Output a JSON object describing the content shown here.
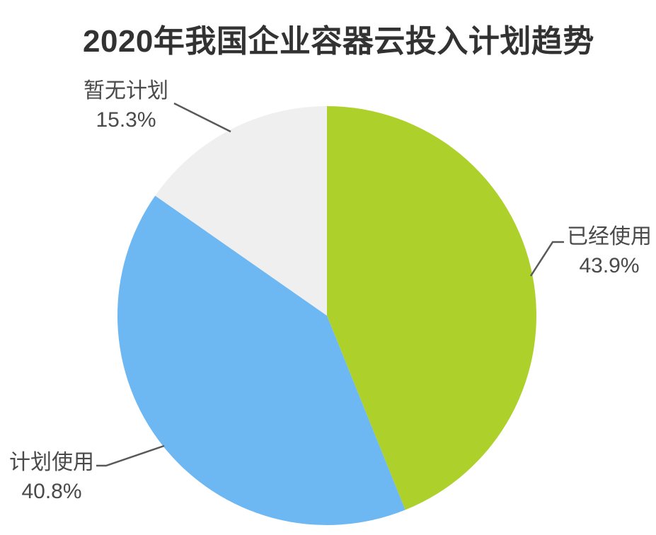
{
  "title": "2020年我国企业容器云投入计划趋势",
  "chart_data": {
    "type": "pie",
    "title": "2020年我国企业容器云投入计划趋势",
    "unit": "%",
    "start_angle": "12-o-clock",
    "direction": "clockwise",
    "legend_position": "none",
    "label_style": "outside-with-leader-lines",
    "slices": [
      {
        "id": "already-using",
        "label": "已经使用",
        "value": 43.9,
        "display": "43.9%",
        "color": "#aed02a"
      },
      {
        "id": "plan-to-use",
        "label": "计划使用",
        "value": 40.8,
        "display": "40.8%",
        "color": "#6db7f2"
      },
      {
        "id": "no-plan",
        "label": "暂无计划",
        "value": 15.3,
        "display": "15.3%",
        "color": "#efefef"
      }
    ]
  },
  "colors": {
    "title_text": "#323232",
    "label_text": "#4a4a4a",
    "leader_line": "#595959",
    "background": "#ffffff"
  }
}
